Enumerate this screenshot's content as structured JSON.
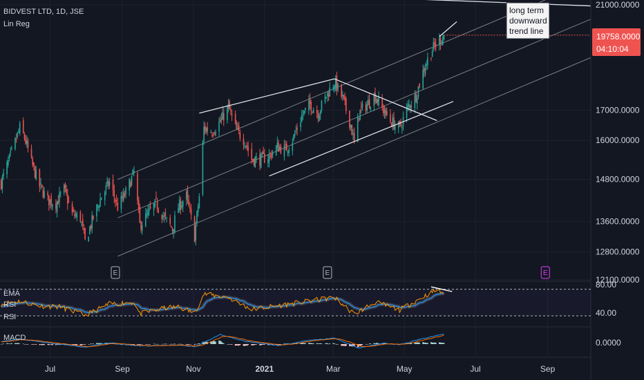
{
  "header": {
    "symbol": "BIDVEST LTD, 1D, JSE",
    "indicator": "Lin Reg"
  },
  "colors": {
    "background": "#131722",
    "up": "#26a69a",
    "down": "#ef5350",
    "trendline": "#e0e3eb",
    "channel": "#9aa0ab",
    "grid": "#1e222d",
    "axis_text": "#d1d4dc",
    "rsi": "#ff9800",
    "ema": "#2196f3",
    "macd": "#2196f3",
    "signal": "#ff6d00",
    "earnings_upcoming": "#e040fb"
  },
  "annotation": {
    "lines": [
      "long term",
      "downward",
      "trend line"
    ]
  },
  "price_badge": {
    "price": "19758.0000",
    "countdown": "04:10:04"
  },
  "events": [
    {
      "label": "E",
      "date": "2020-08-26",
      "upcoming": false
    },
    {
      "label": "E",
      "date": "2021-02-24",
      "upcoming": false
    },
    {
      "label": "E",
      "date": "2021-08-30",
      "upcoming": true
    }
  ],
  "rsi_panel": {
    "labels": [
      "EMA",
      "RSI",
      "RSI"
    ],
    "levels": [
      "80.00",
      "40.00"
    ]
  },
  "macd_panel": {
    "label": "MACD",
    "levels": [
      "0.0000"
    ]
  },
  "chart_data": {
    "type": "candlestick",
    "title": "BIDVEST LTD, 1D, JSE",
    "y_ticks": [
      "21000.0000",
      "17000.0000",
      "16000.0000",
      "14800.0000",
      "13600.0000",
      "12800.0000",
      "12100.0000"
    ],
    "y_scale": "log",
    "y_range": [
      12100,
      21200
    ],
    "x_ticks": [
      {
        "label": "Jul",
        "date": "2020-07-01"
      },
      {
        "label": "Sep",
        "date": "2020-09-01"
      },
      {
        "label": "Nov",
        "date": "2020-11-01"
      },
      {
        "label": "2021",
        "date": "2021-01-01"
      },
      {
        "label": "Mar",
        "date": "2021-03-01"
      },
      {
        "label": "May",
        "date": "2021-05-01"
      },
      {
        "label": "Jul",
        "date": "2021-07-01"
      },
      {
        "label": "Sep",
        "date": "2021-09-01"
      }
    ],
    "x_range": [
      "2020-05-19",
      "2021-10-08"
    ],
    "price_path": [
      [
        "2020-05-20",
        14700
      ],
      [
        "2020-05-29",
        15600
      ],
      [
        "2020-06-05",
        16400
      ],
      [
        "2020-06-09",
        16100
      ],
      [
        "2020-06-15",
        15300
      ],
      [
        "2020-06-22",
        14600
      ],
      [
        "2020-06-29",
        14200
      ],
      [
        "2020-07-06",
        14100
      ],
      [
        "2020-07-13",
        14500
      ],
      [
        "2020-07-20",
        13800
      ],
      [
        "2020-07-27",
        13700
      ],
      [
        "2020-07-31",
        13050
      ],
      [
        "2020-08-07",
        13700
      ],
      [
        "2020-08-14",
        14300
      ],
      [
        "2020-08-21",
        14700
      ],
      [
        "2020-08-28",
        14000
      ],
      [
        "2020-09-04",
        14400
      ],
      [
        "2020-09-11",
        15000
      ],
      [
        "2020-09-16",
        13500
      ],
      [
        "2020-09-23",
        13800
      ],
      [
        "2020-09-30",
        14100
      ],
      [
        "2020-10-07",
        13700
      ],
      [
        "2020-10-14",
        13400
      ],
      [
        "2020-10-19",
        14000
      ],
      [
        "2020-10-26",
        14300
      ],
      [
        "2020-11-02",
        13200
      ],
      [
        "2020-11-06",
        14300
      ],
      [
        "2020-11-10",
        16400
      ],
      [
        "2020-11-17",
        16300
      ],
      [
        "2020-11-24",
        16600
      ],
      [
        "2020-12-01",
        17100
      ],
      [
        "2020-12-08",
        16300
      ],
      [
        "2020-12-15",
        16000
      ],
      [
        "2020-12-21",
        15400
      ],
      [
        "2020-12-28",
        15400
      ],
      [
        "2021-01-05",
        15500
      ],
      [
        "2021-01-12",
        15800
      ],
      [
        "2021-01-19",
        15700
      ],
      [
        "2021-01-26",
        16100
      ],
      [
        "2021-02-02",
        16800
      ],
      [
        "2021-02-09",
        17200
      ],
      [
        "2021-02-16",
        16900
      ],
      [
        "2021-02-23",
        17500
      ],
      [
        "2021-03-02",
        18000
      ],
      [
        "2021-03-09",
        17400
      ],
      [
        "2021-03-16",
        16500
      ],
      [
        "2021-03-19",
        15900
      ],
      [
        "2021-03-23",
        16900
      ],
      [
        "2021-03-30",
        17200
      ],
      [
        "2021-04-06",
        17500
      ],
      [
        "2021-04-13",
        17000
      ],
      [
        "2021-04-20",
        16600
      ],
      [
        "2021-04-27",
        16400
      ],
      [
        "2021-05-04",
        17100
      ],
      [
        "2021-05-11",
        17500
      ],
      [
        "2021-05-18",
        18500
      ],
      [
        "2021-05-25",
        19200
      ],
      [
        "2021-06-01",
        19600
      ],
      [
        "2021-06-04",
        19758
      ]
    ],
    "last_price": 19758,
    "rsi_range": [
      20,
      90
    ],
    "rsi_path": [
      [
        "2020-05-20",
        55
      ],
      [
        "2020-06-05",
        60
      ],
      [
        "2020-06-22",
        52
      ],
      [
        "2020-07-10",
        50
      ],
      [
        "2020-07-31",
        36
      ],
      [
        "2020-08-21",
        55
      ],
      [
        "2020-09-11",
        58
      ],
      [
        "2020-09-16",
        38
      ],
      [
        "2020-10-07",
        48
      ],
      [
        "2020-10-19",
        50
      ],
      [
        "2020-11-02",
        40
      ],
      [
        "2020-11-10",
        72
      ],
      [
        "2020-12-01",
        66
      ],
      [
        "2020-12-21",
        46
      ],
      [
        "2021-01-12",
        52
      ],
      [
        "2021-02-09",
        60
      ],
      [
        "2021-03-02",
        66
      ],
      [
        "2021-03-19",
        38
      ],
      [
        "2021-04-06",
        58
      ],
      [
        "2021-04-27",
        45
      ],
      [
        "2021-05-18",
        68
      ],
      [
        "2021-05-28",
        78
      ],
      [
        "2021-06-04",
        74
      ]
    ],
    "macd_path": [
      [
        "2020-05-20",
        120
      ],
      [
        "2020-06-05",
        220
      ],
      [
        "2020-07-01",
        50
      ],
      [
        "2020-07-31",
        -140
      ],
      [
        "2020-08-21",
        60
      ],
      [
        "2020-09-16",
        -90
      ],
      [
        "2020-10-19",
        -40
      ],
      [
        "2020-11-02",
        -120
      ],
      [
        "2020-11-24",
        420
      ],
      [
        "2020-12-15",
        120
      ],
      [
        "2021-01-12",
        -60
      ],
      [
        "2021-02-09",
        160
      ],
      [
        "2021-03-02",
        260
      ],
      [
        "2021-03-23",
        -170
      ],
      [
        "2021-04-13",
        40
      ],
      [
        "2021-04-27",
        -30
      ],
      [
        "2021-05-18",
        260
      ],
      [
        "2021-06-04",
        430
      ]
    ],
    "trendlines": [
      {
        "name": "long-term-downtrend",
        "points": [
          [
            "2020-11-01",
            21600
          ],
          [
            "2021-10-08",
            20950
          ]
        ]
      },
      {
        "name": "flag-upper",
        "points": [
          [
            "2020-11-06",
            16900
          ],
          [
            "2021-03-02",
            18100
          ]
        ]
      },
      {
        "name": "flag-lower",
        "points": [
          [
            "2021-01-05",
            14900
          ],
          [
            "2021-06-12",
            17300
          ]
        ]
      },
      {
        "name": "wedge-top",
        "points": [
          [
            "2021-03-02",
            18100
          ],
          [
            "2021-05-29",
            16650
          ]
        ]
      },
      {
        "name": "recent-rising",
        "points": [
          [
            "2021-05-31",
            19700
          ],
          [
            "2021-06-15",
            20300
          ]
        ]
      }
    ],
    "regression_channel": {
      "start": "2020-08-28",
      "end": "2021-10-08",
      "mid": [
        13700,
        20400
      ],
      "width_factor": 1.08
    }
  }
}
